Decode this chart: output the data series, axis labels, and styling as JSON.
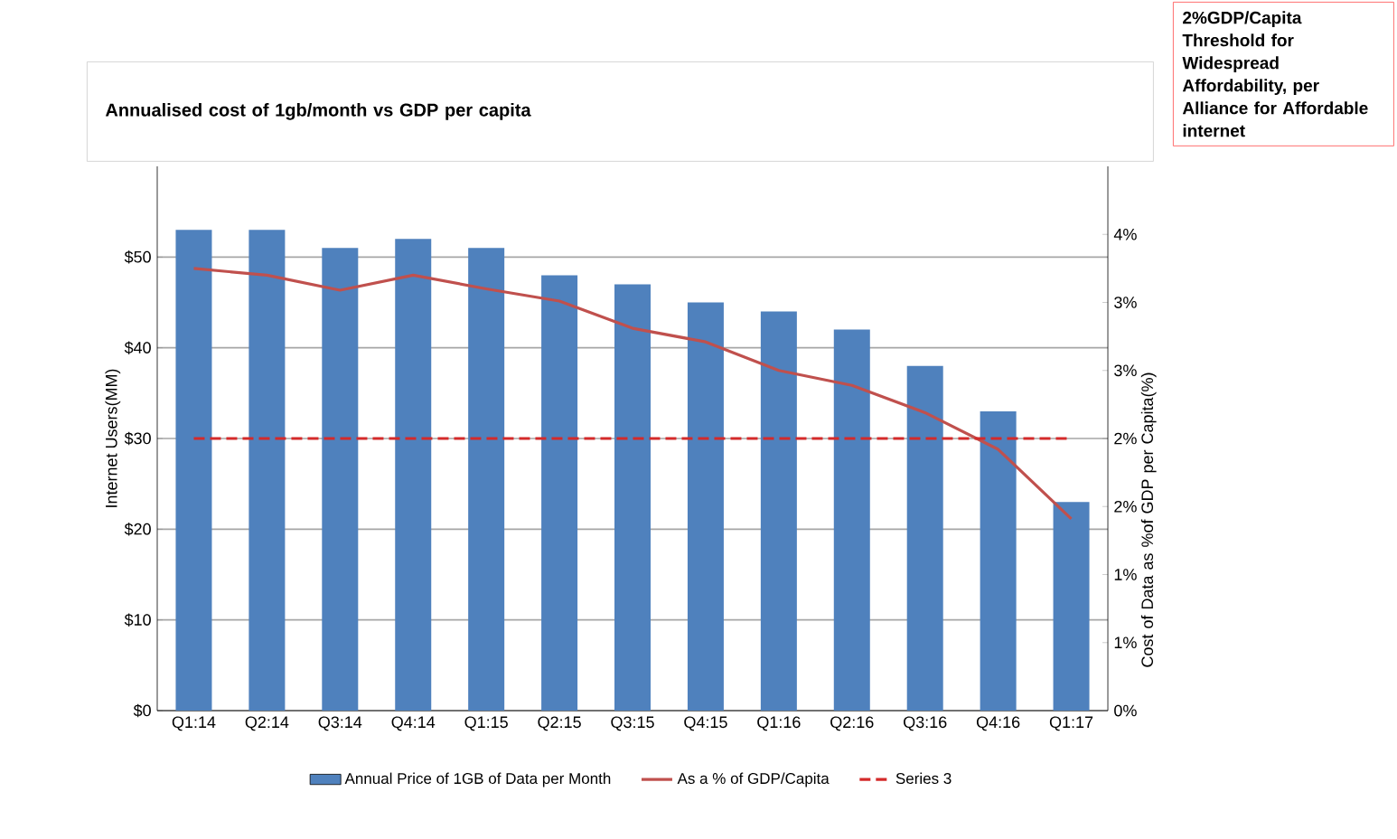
{
  "chart_data": {
    "type": "bar",
    "title": "Annualised cost of 1gb/month vs GDP per capita",
    "categories": [
      "Q1:14",
      "Q2:14",
      "Q3:14",
      "Q4:14",
      "Q1:15",
      "Q2:15",
      "Q3:15",
      "Q4:15",
      "Q1:16",
      "Q2:16",
      "Q3:16",
      "Q4:16",
      "Q1:17"
    ],
    "series": [
      {
        "name": "Annual Price of 1GB of Data per Month",
        "axis": "y",
        "color": "#4f81bd",
        "values": [
          53,
          53,
          51,
          52,
          51,
          48,
          47,
          45,
          44,
          42,
          38,
          33,
          23
        ]
      },
      {
        "name": "As a % of GDP/Capita",
        "type": "line",
        "axis": "y2",
        "color": "#c0504d",
        "line_style": "solid",
        "values": [
          3.25,
          3.2,
          3.09,
          3.2,
          3.1,
          3.01,
          2.81,
          2.71,
          2.5,
          2.39,
          2.19,
          1.92,
          1.41
        ]
      },
      {
        "name": "Series 3",
        "type": "line",
        "axis": "y2",
        "color": "#d42a2a",
        "line_style": "dashed",
        "values": [
          2,
          2,
          2,
          2,
          2,
          2,
          2,
          2,
          2,
          2,
          2,
          2,
          2
        ]
      }
    ],
    "ylabel": "Internet Users(MM)",
    "y2label": "Cost of Data as %of GDP per Capita(%)",
    "ylim": [
      0,
      60
    ],
    "yticks": [
      {
        "value": 0,
        "label": "$0"
      },
      {
        "value": 10,
        "label": "$10"
      },
      {
        "value": 20,
        "label": "$20"
      },
      {
        "value": 30,
        "label": "$30"
      },
      {
        "value": 40,
        "label": "$40"
      },
      {
        "value": 50,
        "label": "$50"
      }
    ],
    "y2lim": [
      0,
      4
    ],
    "y2ticks": [
      {
        "value": 0,
        "label": "0%"
      },
      {
        "value": 0.5,
        "label": "1%"
      },
      {
        "value": 1,
        "label": "1%"
      },
      {
        "value": 1.5,
        "label": "2%"
      },
      {
        "value": 2,
        "label": "2%"
      },
      {
        "value": 2.5,
        "label": "3%"
      },
      {
        "value": 3,
        "label": "3%"
      },
      {
        "value": 3.5,
        "label": "4%"
      }
    ],
    "grid": "y",
    "legend": "bottom",
    "marker": "none",
    "annotations": [
      "2%GDP/Capita Threshold for Widespread Affordability, per Alliance for Affordable internet"
    ]
  }
}
